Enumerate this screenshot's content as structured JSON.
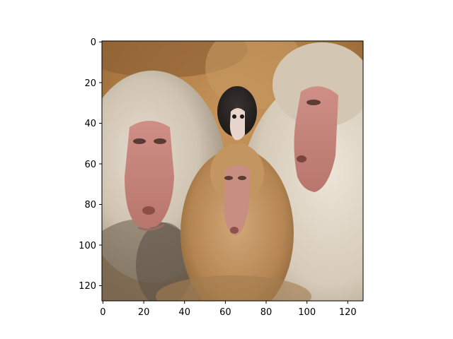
{
  "figure": {
    "image_description_source": "imshow display of a 128x128 photo",
    "x_axis": {
      "ticks": [
        0,
        20,
        40,
        60,
        80,
        100,
        120
      ],
      "range": [
        -0.5,
        127.5
      ]
    },
    "y_axis": {
      "ticks": [
        0,
        20,
        40,
        60,
        80,
        100,
        120
      ],
      "range": [
        127.5,
        -0.5
      ]
    },
    "colors": {
      "background": "#ffffff",
      "axes_edge": "#000000",
      "fur_light": "#d8cfc0",
      "fur_tan": "#b98a55",
      "fur_dark": "#6e5a45",
      "face_pink": "#c98a80",
      "rock_brown": "#9b6b3c"
    }
  }
}
